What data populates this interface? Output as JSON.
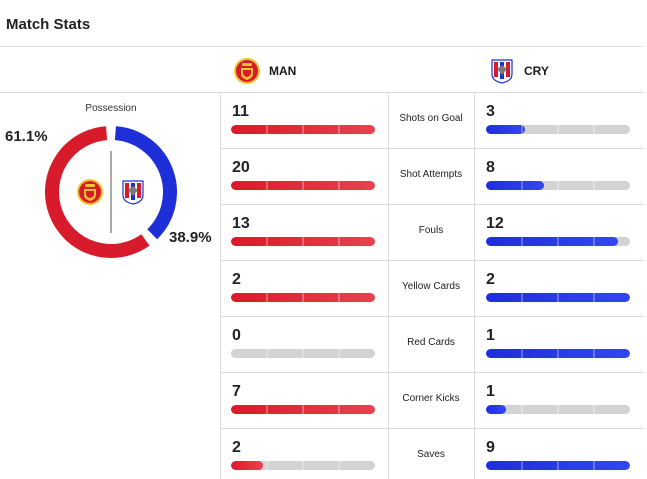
{
  "page": {
    "title": "Match Stats"
  },
  "teams": {
    "home": {
      "abbr": "MAN",
      "crest_icon": "manchester-united-crest",
      "color": "#d81b2a"
    },
    "away": {
      "abbr": "CRY",
      "crest_icon": "crystal-palace-crest",
      "color": "#1f2fd8"
    }
  },
  "possession": {
    "label": "Possession",
    "home_pct": "61.1%",
    "away_pct": "38.9%",
    "home_value": 61.1,
    "away_value": 38.9
  },
  "stats": [
    {
      "label": "Shots on Goal",
      "home": "11",
      "away": "3",
      "home_frac": 1.0,
      "away_frac": 0.27
    },
    {
      "label": "Shot Attempts",
      "home": "20",
      "away": "8",
      "home_frac": 1.0,
      "away_frac": 0.4
    },
    {
      "label": "Fouls",
      "home": "13",
      "away": "12",
      "home_frac": 1.0,
      "away_frac": 0.92
    },
    {
      "label": "Yellow Cards",
      "home": "2",
      "away": "2",
      "home_frac": 1.0,
      "away_frac": 1.0
    },
    {
      "label": "Red Cards",
      "home": "0",
      "away": "1",
      "home_frac": 0.0,
      "away_frac": 1.0
    },
    {
      "label": "Corner Kicks",
      "home": "7",
      "away": "1",
      "home_frac": 1.0,
      "away_frac": 0.14
    },
    {
      "label": "Saves",
      "home": "2",
      "away": "9",
      "home_frac": 0.22,
      "away_frac": 1.0
    }
  ]
}
